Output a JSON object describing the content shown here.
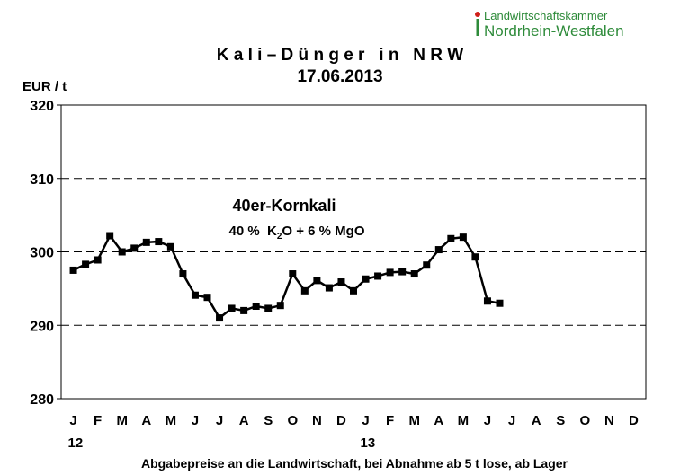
{
  "logo": {
    "line1": "Landwirtschaftskammer",
    "line2": "Nordrhein-Westfalen"
  },
  "chart_data": {
    "type": "line",
    "title": "K a l i – D ü n g e r   i n   N R W",
    "subtitle": "17.06.2013",
    "ylabel": "EUR / t",
    "xlabel": "Abgabepreise an die Landwirtschaft, bei Abnahme ab 5 t lose, ab Lager",
    "ylim": [
      280,
      320
    ],
    "yticks": [
      280,
      290,
      300,
      310,
      320
    ],
    "grid": "dashed horizontal at 290, 300, 310",
    "month_labels": [
      "J",
      "F",
      "M",
      "A",
      "M",
      "J",
      "J",
      "A",
      "S",
      "O",
      "N",
      "D",
      "J",
      "F",
      "M",
      "A",
      "M",
      "J",
      "J",
      "A",
      "S",
      "O",
      "N",
      "D"
    ],
    "year_labels": [
      {
        "label": "12",
        "month_index": 0
      },
      {
        "label": "13",
        "month_index": 12
      }
    ],
    "annotation": {
      "title": "40er-Kornkali",
      "formula_a": "40 %  K",
      "formula_sub": "2",
      "formula_b": "O + 6 % MgO"
    },
    "line_color": "#000000",
    "series": [
      {
        "x": [
          0,
          0.5,
          1,
          1.5,
          2,
          2.5,
          3,
          3.5,
          4,
          4.5,
          5,
          5.5,
          6,
          6.5,
          7,
          7.5,
          8,
          8.5,
          9,
          9.5,
          10,
          10.5,
          11,
          11.5,
          12,
          12.5,
          13,
          13.5,
          14,
          14.5,
          15,
          15.5,
          16,
          16.5,
          17,
          17.5
        ],
        "values": [
          297.5,
          298.3,
          298.9,
          302.2,
          300.0,
          300.5,
          301.3,
          301.4,
          300.7,
          297.0,
          294.1,
          293.8,
          291.0,
          292.3,
          292.0,
          292.6,
          292.3,
          292.7,
          297.0,
          294.7,
          296.1,
          295.1,
          295.9,
          294.7,
          296.3,
          296.7,
          297.2,
          297.3,
          297.0,
          298.2,
          300.3,
          301.8,
          302.0,
          299.3,
          293.3,
          293.0
        ]
      }
    ]
  }
}
